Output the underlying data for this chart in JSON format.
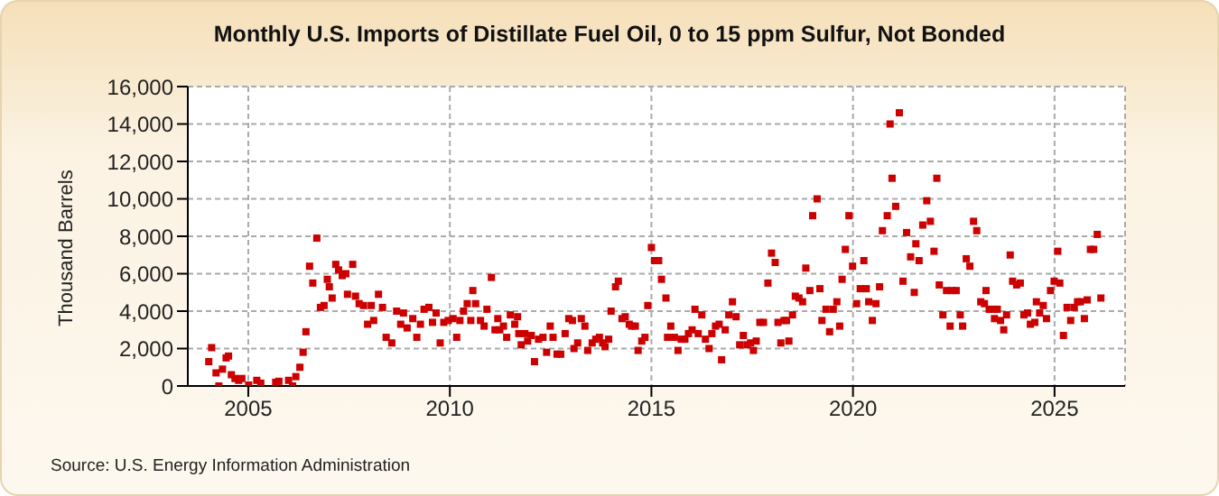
{
  "chart_data": {
    "type": "scatter",
    "title": "Monthly U.S. Imports of Distillate Fuel Oil, 0 to 15 ppm Sulfur, Not Bonded",
    "ylabel": "Thousand Barrels",
    "annotations": [
      "Source: U.S. Energy Information Administration"
    ],
    "x": [
      2004.02,
      2004.09,
      2004.2,
      2004.27,
      2004.36,
      2004.45,
      2004.51,
      2004.58,
      2004.67,
      2004.76,
      2004.84,
      2005.01,
      2005.21,
      2005.31,
      2005.68,
      2005.76,
      2006.0,
      2006.1,
      2006.18,
      2006.28,
      2006.36,
      2006.43,
      2006.52,
      2006.6,
      2006.7,
      2006.79,
      2006.88,
      2006.96,
      2007.01,
      2007.08,
      2007.17,
      2007.24,
      2007.33,
      2007.42,
      2007.46,
      2007.59,
      2007.66,
      2007.75,
      2007.86,
      2007.96,
      2008.05,
      2008.11,
      2008.23,
      2008.33,
      2008.42,
      2008.56,
      2008.68,
      2008.78,
      2008.85,
      2008.94,
      2009.08,
      2009.18,
      2009.27,
      2009.36,
      2009.48,
      2009.57,
      2009.66,
      2009.76,
      2009.85,
      2009.96,
      2010.08,
      2010.17,
      2010.25,
      2010.34,
      2010.43,
      2010.52,
      2010.57,
      2010.64,
      2010.76,
      2010.85,
      2010.92,
      2011.03,
      2011.12,
      2011.19,
      2011.24,
      2011.33,
      2011.41,
      2011.5,
      2011.61,
      2011.68,
      2011.71,
      2011.77,
      2011.86,
      2011.93,
      2012.02,
      2012.1,
      2012.2,
      2012.31,
      2012.4,
      2012.49,
      2012.56,
      2012.66,
      2012.75,
      2012.86,
      2012.95,
      2013.04,
      2013.08,
      2013.17,
      2013.26,
      2013.35,
      2013.42,
      2013.53,
      2013.62,
      2013.71,
      2013.79,
      2013.85,
      2013.94,
      2014.0,
      2014.11,
      2014.18,
      2014.27,
      2014.35,
      2014.45,
      2014.51,
      2014.6,
      2014.67,
      2014.76,
      2014.84,
      2014.91,
      2015.0,
      2015.08,
      2015.18,
      2015.25,
      2015.36,
      2015.4,
      2015.48,
      2015.57,
      2015.66,
      2015.74,
      2015.83,
      2015.92,
      2016.01,
      2016.08,
      2016.16,
      2016.25,
      2016.34,
      2016.43,
      2016.5,
      2016.59,
      2016.68,
      2016.74,
      2016.83,
      2016.92,
      2017.01,
      2017.1,
      2017.19,
      2017.28,
      2017.37,
      2017.46,
      2017.53,
      2017.6,
      2017.69,
      2017.78,
      2017.89,
      2017.98,
      2018.07,
      2018.14,
      2018.21,
      2018.29,
      2018.35,
      2018.41,
      2018.5,
      2018.57,
      2018.66,
      2018.75,
      2018.83,
      2018.93,
      2019.0,
      2019.11,
      2019.18,
      2019.23,
      2019.33,
      2019.42,
      2019.51,
      2019.6,
      2019.67,
      2019.73,
      2019.81,
      2019.9,
      2019.99,
      2020.09,
      2020.18,
      2020.27,
      2020.33,
      2020.39,
      2020.48,
      2020.57,
      2020.66,
      2020.73,
      2020.85,
      2020.92,
      2020.97,
      2021.06,
      2021.15,
      2021.24,
      2021.33,
      2021.43,
      2021.52,
      2021.56,
      2021.64,
      2021.73,
      2021.83,
      2021.92,
      2022.01,
      2022.08,
      2022.14,
      2022.23,
      2022.32,
      2022.41,
      2022.46,
      2022.56,
      2022.66,
      2022.72,
      2022.81,
      2022.9,
      2022.99,
      2023.07,
      2023.17,
      2023.26,
      2023.3,
      2023.38,
      2023.48,
      2023.51,
      2023.58,
      2023.66,
      2023.74,
      2023.81,
      2023.9,
      2023.96,
      2024.06,
      2024.15,
      2024.24,
      2024.33,
      2024.4,
      2024.51,
      2024.55,
      2024.63,
      2024.72,
      2024.8,
      2024.9,
      2024.99,
      2025.08,
      2025.13,
      2025.22,
      2025.31,
      2025.4,
      2025.49,
      2025.57,
      2025.64,
      2025.74,
      2025.81,
      2025.89,
      2025.97,
      2026.06,
      2026.15
    ],
    "values": [
      1300,
      2050,
      700,
      0,
      900,
      1500,
      1600,
      600,
      400,
      300,
      400,
      50,
      300,
      150,
      200,
      250,
      300,
      0,
      500,
      1000,
      1800,
      2900,
      6400,
      5500,
      7900,
      4200,
      4300,
      5700,
      5300,
      4700,
      6500,
      6200,
      5900,
      6000,
      4900,
      6500,
      4800,
      4400,
      4300,
      3300,
      4300,
      3500,
      4900,
      4200,
      2600,
      2300,
      4000,
      3300,
      3900,
      3100,
      3600,
      2600,
      3300,
      4100,
      4200,
      3400,
      3900,
      2300,
      3400,
      3500,
      3600,
      2600,
      3500,
      4000,
      4400,
      3500,
      5100,
      4400,
      3500,
      3200,
      4100,
      5800,
      3000,
      3600,
      3000,
      3200,
      2600,
      3800,
      3300,
      3700,
      2800,
      2200,
      2800,
      2400,
      2700,
      1300,
      2500,
      2600,
      1800,
      3200,
      2600,
      1700,
      1700,
      2800,
      3600,
      3500,
      2000,
      2300,
      3600,
      3200,
      1900,
      2300,
      2500,
      2600,
      2300,
      2100,
      2500,
      4000,
      5300,
      5600,
      3600,
      3700,
      3300,
      3200,
      3200,
      1900,
      2400,
      2600,
      4300,
      7400,
      6700,
      6700,
      5700,
      4700,
      2600,
      3200,
      2600,
      1900,
      2500,
      2500,
      2800,
      3000,
      4100,
      2800,
      3800,
      2500,
      2000,
      2800,
      3200,
      3300,
      1400,
      3000,
      3800,
      4500,
      3700,
      2200,
      2700,
      2200,
      2300,
      1900,
      2400,
      3400,
      3400,
      5500,
      7100,
      6600,
      3400,
      2300,
      3500,
      3500,
      2400,
      3800,
      4800,
      4700,
      4500,
      6300,
      5100,
      9100,
      10000,
      5200,
      3500,
      4100,
      2900,
      4100,
      4500,
      3200,
      5700,
      7300,
      9100,
      6400,
      4400,
      5200,
      6700,
      5200,
      4500,
      3500,
      4400,
      5300,
      8300,
      9100,
      14000,
      11100,
      9600,
      14600,
      5600,
      8200,
      6900,
      5000,
      7600,
      6700,
      8600,
      9900,
      8800,
      7200,
      11100,
      5400,
      3800,
      5100,
      3200,
      5100,
      5100,
      3800,
      3200,
      6800,
      6400,
      8800,
      8300,
      4500,
      4400,
      5100,
      4100,
      4100,
      3600,
      4100,
      3500,
      3000,
      3800,
      7000,
      5600,
      5400,
      5500,
      3800,
      3900,
      3300,
      3400,
      4500,
      3900,
      4300,
      3600,
      5100,
      5600,
      7200,
      5500,
      2700,
      4200,
      3500,
      4200,
      4500,
      4500,
      3600,
      4600,
      7300,
      7300,
      8100,
      4700
    ],
    "color": "#cc0000",
    "marker": "square",
    "xlim": [
      2003.5,
      2026.75
    ],
    "xticks": [
      2005,
      2010,
      2015,
      2020,
      2025
    ],
    "ylim": [
      0,
      16000
    ],
    "yticks": [
      0,
      {
        "value": 2000,
        "label": "2,000"
      },
      {
        "value": 4000,
        "label": "4,000"
      },
      {
        "value": 6000,
        "label": "6,000"
      },
      {
        "value": 8000,
        "label": "8,000"
      },
      {
        "value": 10000,
        "label": "10,000"
      },
      {
        "value": 12000,
        "label": "12,000"
      },
      {
        "value": 14000,
        "label": "14,000"
      },
      {
        "value": 16000,
        "label": "16,000"
      }
    ],
    "grid": true
  }
}
